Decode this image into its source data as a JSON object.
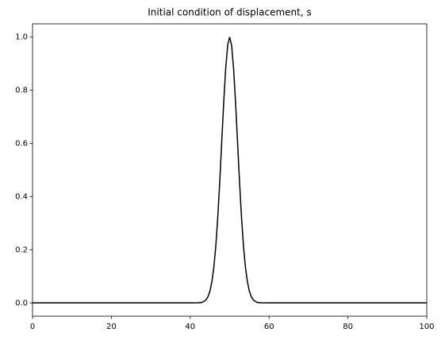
{
  "chart_data": {
    "type": "line",
    "title": "Initial condition of displacement, s",
    "x": [
      0,
      10,
      20,
      30,
      40,
      42,
      43,
      44,
      44.5,
      45,
      45.5,
      46,
      46.5,
      47,
      47.5,
      48,
      48.5,
      49,
      49.5,
      50,
      50.5,
      51,
      51.5,
      52,
      52.5,
      53,
      53.5,
      54,
      54.5,
      55,
      55.5,
      56,
      57,
      58,
      60,
      70,
      80,
      90,
      100
    ],
    "series": [
      {
        "color": "#000000",
        "values": [
          0,
          0,
          0,
          0,
          0,
          0.0003,
          0.002,
          0.011,
          0.023,
          0.044,
          0.08,
          0.135,
          0.216,
          0.325,
          0.458,
          0.607,
          0.755,
          0.882,
          0.969,
          1,
          0.969,
          0.882,
          0.755,
          0.607,
          0.458,
          0.325,
          0.216,
          0.135,
          0.08,
          0.044,
          0.023,
          0.011,
          0.002,
          0.0003,
          0,
          0,
          0,
          0,
          0
        ]
      }
    ],
    "xlim": [
      0,
      100
    ],
    "xticks": [
      0,
      20,
      40,
      60,
      80,
      100
    ],
    "ylim": [
      -0.05,
      1.05
    ],
    "yticks": [
      {
        "value": 0,
        "label": "0.0"
      },
      0.2,
      0.4,
      0.6,
      0.8,
      {
        "value": 1,
        "label": "1.0"
      }
    ],
    "grid": false
  }
}
